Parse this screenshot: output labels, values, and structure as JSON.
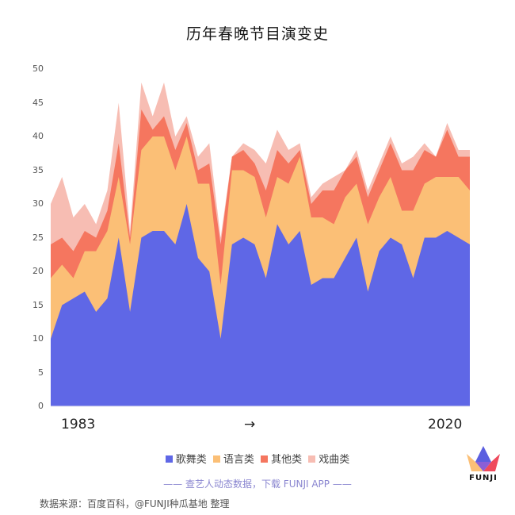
{
  "title": "历年春晚节目演变史",
  "colors": {
    "song_dance": "#5f67e6",
    "language": "#fbbf76",
    "other": "#f5765f",
    "opera": "#f7bdb3"
  },
  "axis": {
    "y_ticks": [
      "0",
      "5",
      "10",
      "15",
      "20",
      "25",
      "30",
      "35",
      "40",
      "45",
      "50"
    ],
    "x_start": "1983",
    "x_arrow": "→",
    "x_end": "2020"
  },
  "legend": {
    "items": [
      {
        "label": "歌舞类",
        "color": "#5f67e6"
      },
      {
        "label": "语言类",
        "color": "#fbbf76"
      },
      {
        "label": "其他类",
        "color": "#f5765f"
      },
      {
        "label": "戏曲类",
        "color": "#f7bdb3"
      }
    ]
  },
  "footer": {
    "promo": "—— 查艺人动态数据，下载 FUNJI APP ——",
    "source": "数据来源：百度百科，@FUNJI种瓜基地 整理",
    "logo_text": "FUNJI"
  },
  "chart_data": {
    "type": "area",
    "stacked": true,
    "title": "历年春晚节目演变史",
    "xlabel": "",
    "ylabel": "",
    "ylim": [
      0,
      50
    ],
    "grid": false,
    "legend_position": "bottom",
    "x": [
      1983,
      1984,
      1985,
      1986,
      1987,
      1988,
      1989,
      1990,
      1991,
      1992,
      1993,
      1994,
      1995,
      1996,
      1997,
      1998,
      1999,
      2000,
      2001,
      2002,
      2003,
      2004,
      2005,
      2006,
      2007,
      2008,
      2009,
      2010,
      2011,
      2012,
      2013,
      2014,
      2015,
      2016,
      2017,
      2018,
      2019,
      2020
    ],
    "series": [
      {
        "name": "歌舞类",
        "values": [
          10,
          15,
          16,
          17,
          14,
          16,
          25,
          14,
          25,
          26,
          26,
          24,
          30,
          22,
          20,
          10,
          24,
          25,
          24,
          19,
          27,
          24,
          26,
          18,
          19,
          19,
          22,
          25,
          17,
          23,
          25,
          24,
          19,
          25,
          25,
          26,
          25,
          24
        ]
      },
      {
        "name": "语言类",
        "values": [
          9,
          6,
          3,
          6,
          9,
          10,
          9,
          10,
          13,
          14,
          14,
          11,
          10,
          11,
          13,
          8,
          11,
          10,
          10,
          9,
          7,
          9,
          11,
          10,
          9,
          8,
          9,
          8,
          10,
          8,
          9,
          5,
          10,
          8,
          9,
          8,
          9,
          8
        ]
      },
      {
        "name": "其他类",
        "values": [
          5,
          4,
          4,
          3,
          2,
          3,
          5,
          1,
          6,
          1,
          3,
          3,
          2,
          2,
          3,
          6,
          2,
          3,
          2,
          4,
          4,
          3,
          1,
          2,
          4,
          5,
          4,
          4,
          4,
          4,
          5,
          6,
          6,
          5,
          3,
          7,
          3,
          5
        ]
      },
      {
        "name": "戏曲类",
        "values": [
          6,
          9,
          5,
          4,
          2,
          3,
          6,
          1,
          4,
          2,
          5,
          2,
          1,
          2,
          3,
          1,
          0,
          1,
          2,
          4,
          3,
          2,
          1,
          1,
          1,
          2,
          0,
          1,
          1,
          1,
          1,
          1,
          2,
          1,
          0,
          1,
          1,
          1
        ]
      }
    ]
  }
}
